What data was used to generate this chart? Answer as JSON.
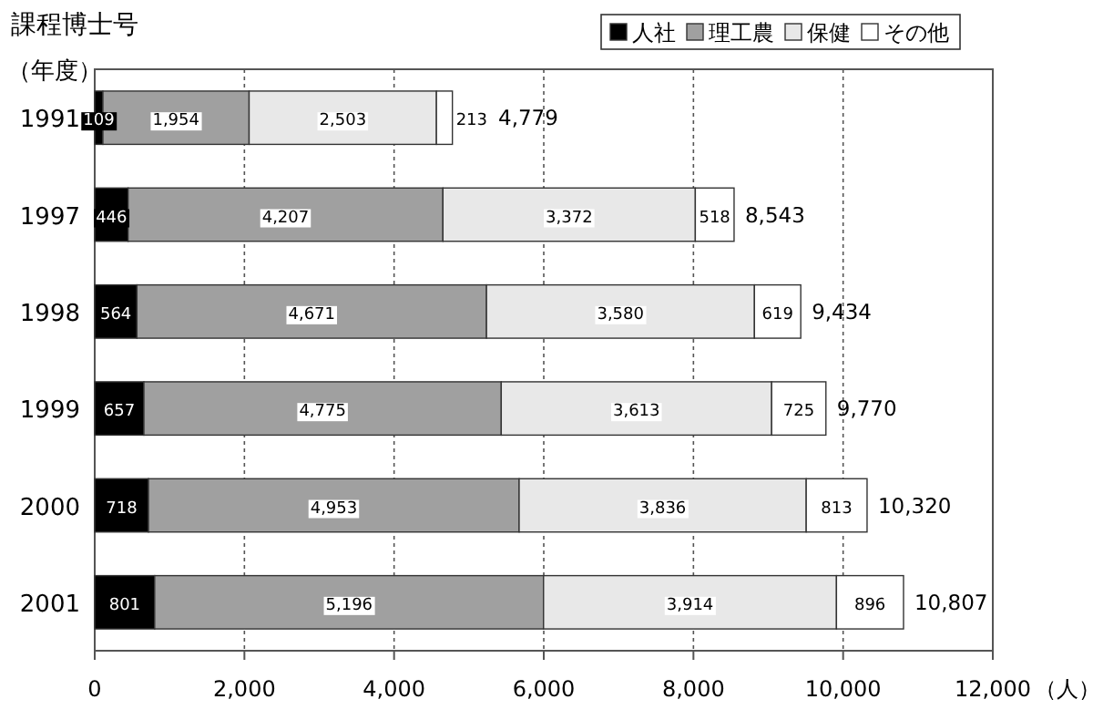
{
  "chart_data": {
    "type": "bar",
    "orientation": "horizontal",
    "stacked": true,
    "title": "課程博士号",
    "xlabel": "（人）",
    "ylabel": "（年度）",
    "categories": [
      "1991",
      "1997",
      "1998",
      "1999",
      "2000",
      "2001"
    ],
    "series": [
      {
        "name": "人社",
        "color": "#000000",
        "values": [
          109,
          446,
          564,
          657,
          718,
          801
        ],
        "value_labels": [
          "109",
          "446",
          "564",
          "657",
          "718",
          "801"
        ]
      },
      {
        "name": "理工農",
        "color": "#a0a0a0",
        "values": [
          1954,
          4207,
          4671,
          4775,
          4953,
          5196
        ],
        "value_labels": [
          "1,954",
          "4,207",
          "4,671",
          "4,775",
          "4,953",
          "5,196"
        ]
      },
      {
        "name": "保健",
        "color": "#e8e8e8",
        "values": [
          2503,
          3372,
          3580,
          3613,
          3836,
          3914
        ],
        "value_labels": [
          "2,503",
          "3,372",
          "3,580",
          "3,613",
          "3,836",
          "3,914"
        ]
      },
      {
        "name": "その他",
        "color": "#ffffff",
        "values": [
          213,
          518,
          619,
          725,
          813,
          896
        ],
        "value_labels": [
          "213",
          "518",
          "619",
          "725",
          "813",
          "896"
        ]
      }
    ],
    "totals": [
      "4,779",
      "8,543",
      "9,434",
      "9,770",
      "10,320",
      "10,807"
    ],
    "xlim": [
      0,
      12000
    ],
    "xticks": [
      0,
      {
        "value": 2000,
        "label": "2,000"
      },
      {
        "value": 4000,
        "label": "4,000"
      },
      {
        "value": 6000,
        "label": "6,000"
      },
      {
        "value": 8000,
        "label": "8,000"
      },
      {
        "value": 10000,
        "label": "10,000"
      },
      {
        "value": 12000,
        "label": "12,000"
      }
    ],
    "grid": "x",
    "legend": "top right"
  }
}
